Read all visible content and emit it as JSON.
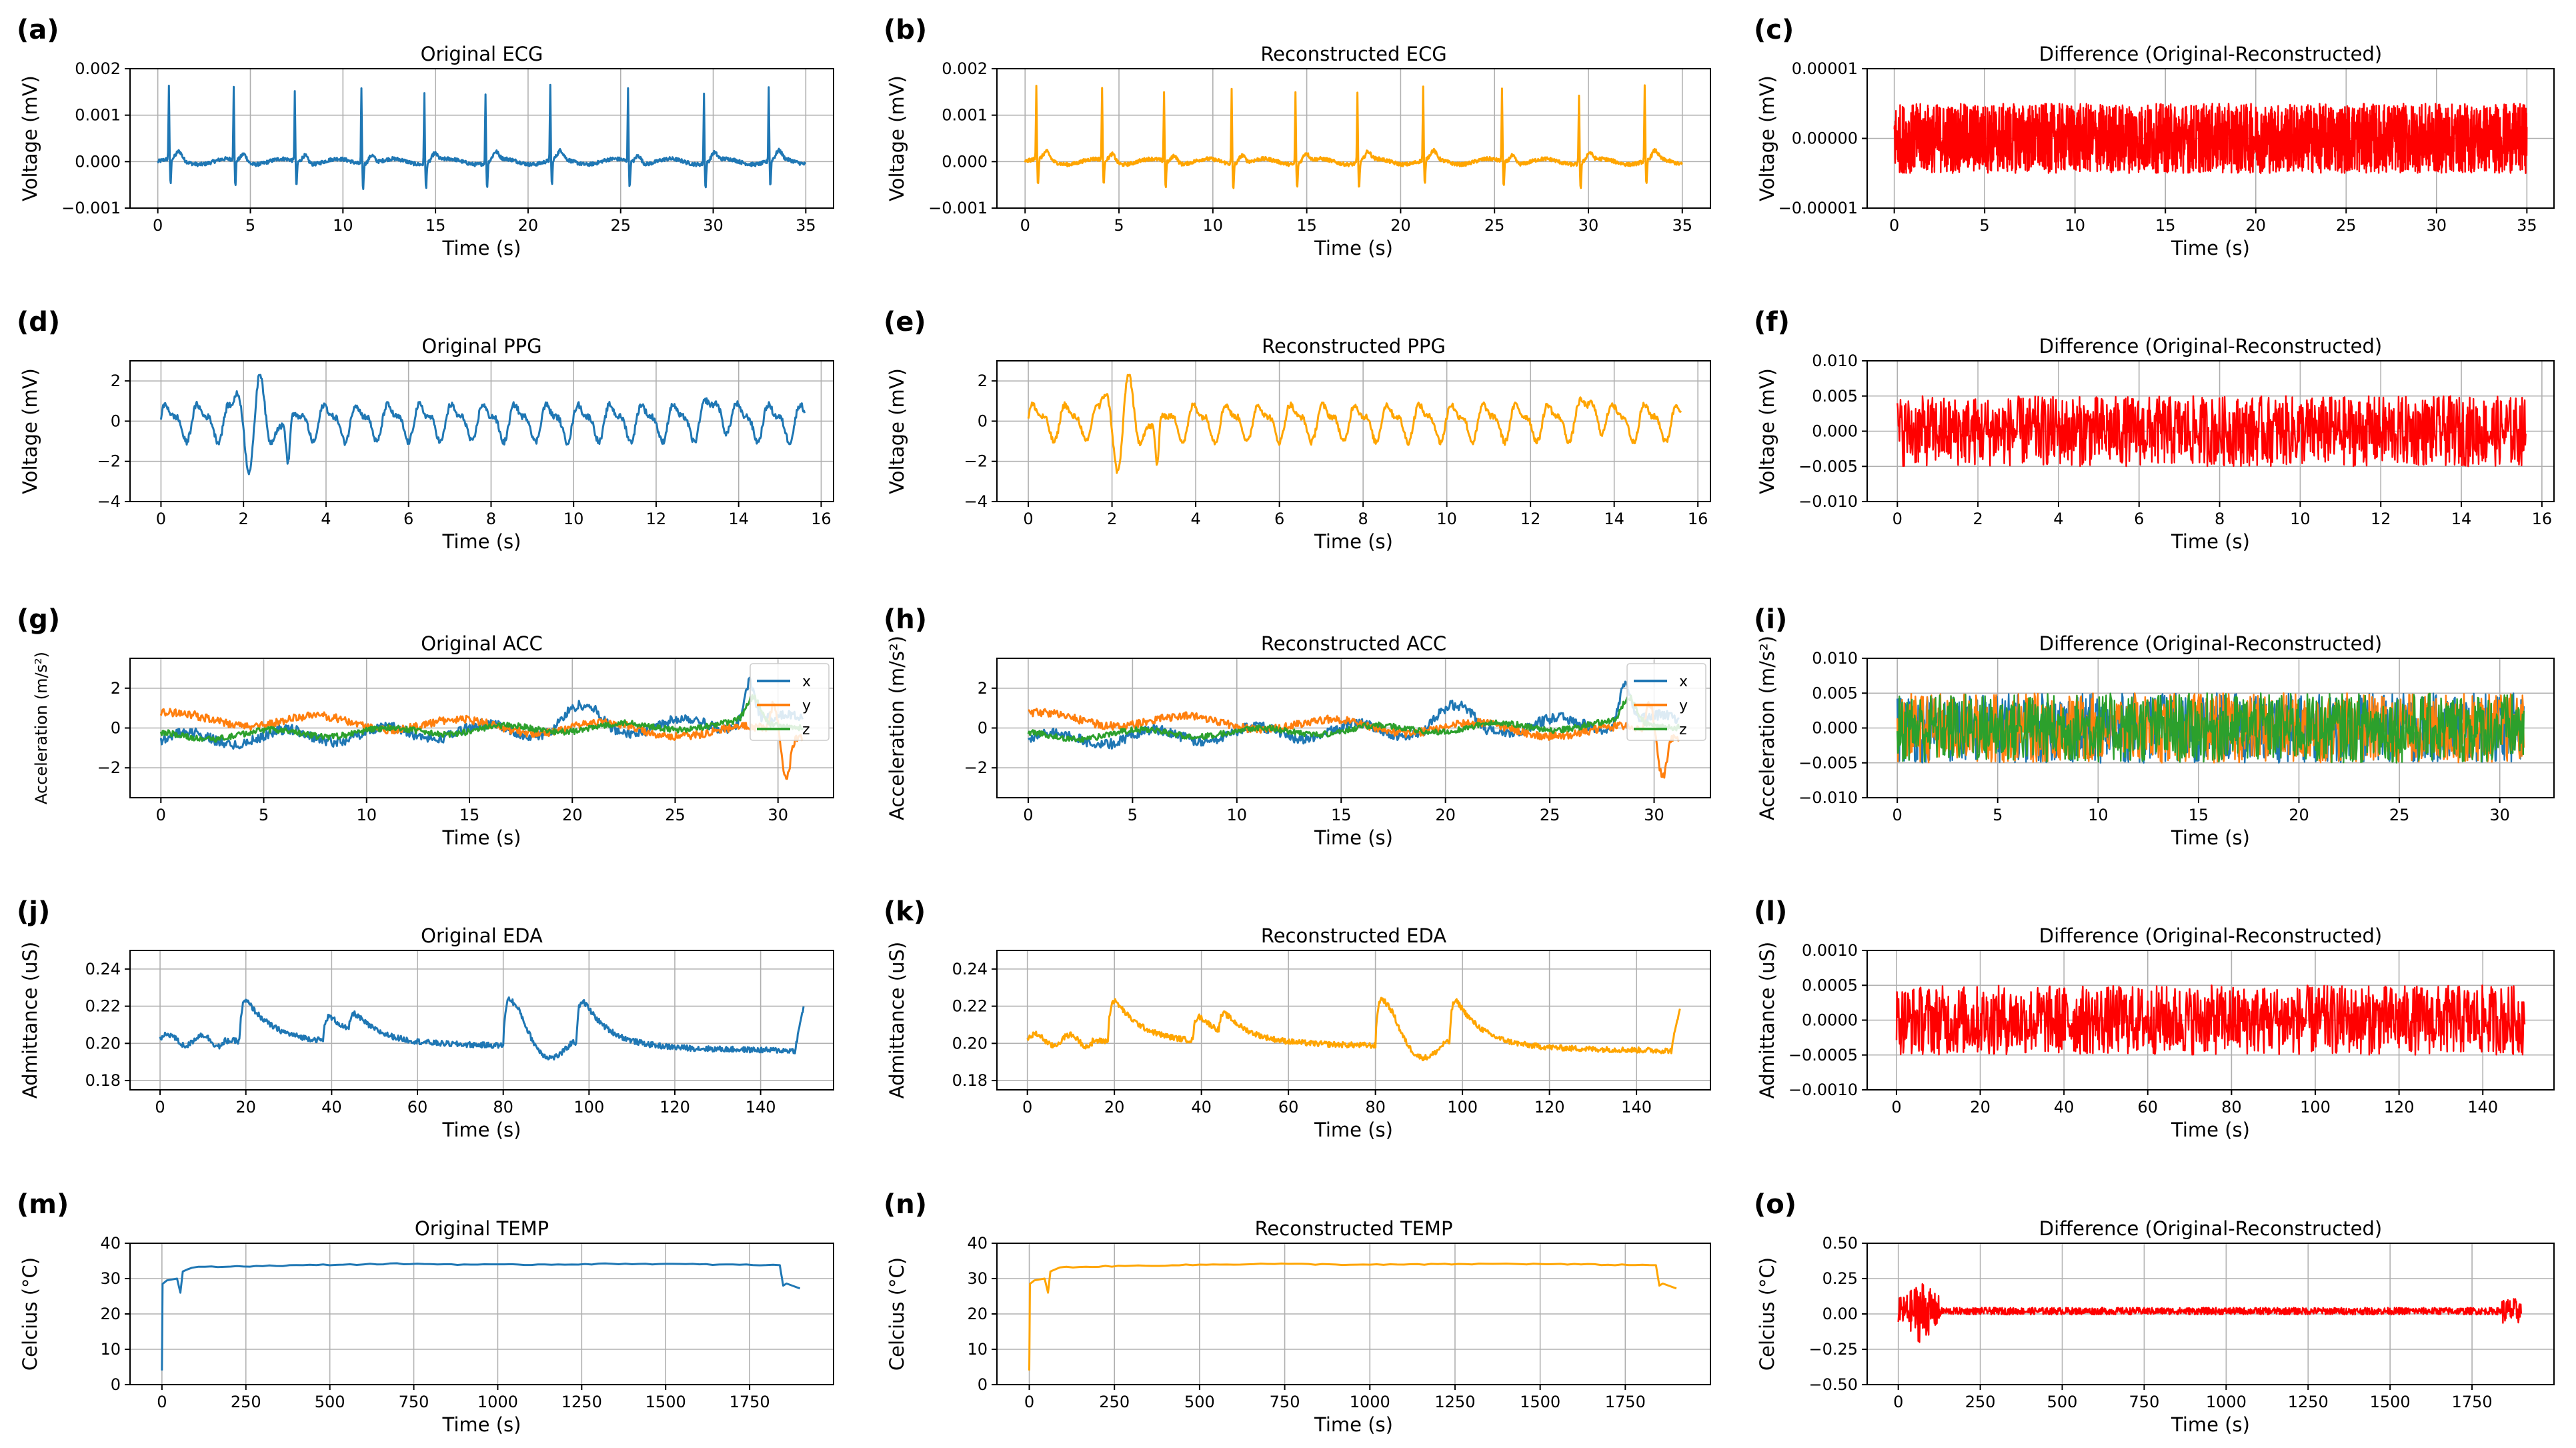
{
  "figure": {
    "colors": {
      "original": "#1f77b4",
      "reconstructed": "#ffa500",
      "difference": "#ff0000",
      "x": "#1f77b4",
      "y": "#ff7f0e",
      "z": "#2ca02c"
    }
  },
  "chart_data": [
    {
      "id": "a",
      "panel_label": "(a)",
      "type": "line",
      "kind": "ecg",
      "variant": "original",
      "title": "Original ECG",
      "xlabel": "Time (s)",
      "ylabel": "Voltage (mV)",
      "xlim": [
        -1.5,
        36.5
      ],
      "ylim": [
        -0.001,
        0.002
      ],
      "xticks": [
        0,
        5,
        10,
        15,
        20,
        25,
        30,
        35
      ],
      "xtick_labels": [
        "0",
        "5",
        "10",
        "15",
        "20",
        "25",
        "30",
        "35"
      ],
      "yticks": [
        -0.001,
        0,
        0.001,
        0.002
      ],
      "ytick_labels": [
        "−0.001",
        "0.000",
        "0.001",
        "0.002"
      ],
      "xrange": [
        0,
        35
      ],
      "beats": [
        0.6,
        4.1,
        7.4,
        11.0,
        14.4,
        17.7,
        21.2,
        25.4,
        29.5,
        33.0
      ],
      "series": [
        {
          "name": "ECG",
          "color": "#1f77b4"
        }
      ]
    },
    {
      "id": "b",
      "panel_label": "(b)",
      "type": "line",
      "kind": "ecg",
      "variant": "reconstructed",
      "title": "Reconstructed ECG",
      "xlabel": "Time (s)",
      "ylabel": "Voltage (mV)",
      "xlim": [
        -1.5,
        36.5
      ],
      "ylim": [
        -0.001,
        0.002
      ],
      "xticks": [
        0,
        5,
        10,
        15,
        20,
        25,
        30,
        35
      ],
      "xtick_labels": [
        "0",
        "5",
        "10",
        "15",
        "20",
        "25",
        "30",
        "35"
      ],
      "yticks": [
        -0.001,
        0,
        0.001,
        0.002
      ],
      "ytick_labels": [
        "−0.001",
        "0.000",
        "0.001",
        "0.002"
      ],
      "xrange": [
        0,
        35
      ],
      "beats": [
        0.6,
        4.1,
        7.4,
        11.0,
        14.4,
        17.7,
        21.2,
        25.4,
        29.5,
        33.0
      ],
      "series": [
        {
          "name": "ECG",
          "color": "#ffa500"
        }
      ]
    },
    {
      "id": "c",
      "panel_label": "(c)",
      "type": "line",
      "kind": "noise",
      "variant": "difference",
      "title": "Difference (Original-Reconstructed)",
      "xlabel": "Time (s)",
      "ylabel": "Voltage (mV)",
      "xlim": [
        -1.5,
        36.5
      ],
      "ylim": [
        -1e-05,
        1e-05
      ],
      "xticks": [
        0,
        5,
        10,
        15,
        20,
        25,
        30,
        35
      ],
      "xtick_labels": [
        "0",
        "5",
        "10",
        "15",
        "20",
        "25",
        "30",
        "35"
      ],
      "yticks": [
        -1e-05,
        0,
        1e-05
      ],
      "ytick_labels": [
        "−0.00001",
        "0.00000",
        "0.00001"
      ],
      "xrange": [
        0,
        35
      ],
      "amplitude": 5e-06,
      "series": [
        {
          "name": "difference",
          "color": "#ff0000"
        }
      ]
    },
    {
      "id": "d",
      "panel_label": "(d)",
      "type": "line",
      "kind": "ppg",
      "variant": "original",
      "title": "Original PPG",
      "xlabel": "Time (s)",
      "ylabel": "Voltage (mV)",
      "xlim": [
        -0.75,
        16.3
      ],
      "ylim": [
        -4,
        3
      ],
      "xticks": [
        0,
        2,
        4,
        6,
        8,
        10,
        12,
        14,
        16
      ],
      "xtick_labels": [
        "0",
        "2",
        "4",
        "6",
        "8",
        "10",
        "12",
        "14",
        "16"
      ],
      "yticks": [
        -4,
        -2,
        0,
        2
      ],
      "ytick_labels": [
        "−4",
        "−2",
        "0",
        "2"
      ],
      "xrange": [
        0,
        15.6
      ],
      "series": [
        {
          "name": "PPG",
          "color": "#1f77b4"
        }
      ]
    },
    {
      "id": "e",
      "panel_label": "(e)",
      "type": "line",
      "kind": "ppg",
      "variant": "reconstructed",
      "title": "Reconstructed PPG",
      "xlabel": "Time (s)",
      "ylabel": "Voltage (mV)",
      "xlim": [
        -0.75,
        16.3
      ],
      "ylim": [
        -4,
        3
      ],
      "xticks": [
        0,
        2,
        4,
        6,
        8,
        10,
        12,
        14,
        16
      ],
      "xtick_labels": [
        "0",
        "2",
        "4",
        "6",
        "8",
        "10",
        "12",
        "14",
        "16"
      ],
      "yticks": [
        -4,
        -2,
        0,
        2
      ],
      "ytick_labels": [
        "−4",
        "−2",
        "0",
        "2"
      ],
      "xrange": [
        0,
        15.6
      ],
      "series": [
        {
          "name": "PPG",
          "color": "#ffa500"
        }
      ]
    },
    {
      "id": "f",
      "panel_label": "(f)",
      "type": "line",
      "kind": "noise",
      "variant": "difference",
      "title": "Difference (Original-Reconstructed)",
      "xlabel": "Time (s)",
      "ylabel": "Voltage (mV)",
      "xlim": [
        -0.75,
        16.3
      ],
      "ylim": [
        -0.01,
        0.01
      ],
      "xticks": [
        0,
        2,
        4,
        6,
        8,
        10,
        12,
        14,
        16
      ],
      "xtick_labels": [
        "0",
        "2",
        "4",
        "6",
        "8",
        "10",
        "12",
        "14",
        "16"
      ],
      "yticks": [
        -0.01,
        -0.005,
        0,
        0.005,
        0.01
      ],
      "ytick_labels": [
        "−0.010",
        "−0.005",
        "0.000",
        "0.005",
        "0.010"
      ],
      "xrange": [
        0,
        15.6
      ],
      "amplitude": 0.005,
      "series": [
        {
          "name": "difference",
          "color": "#ff0000"
        }
      ]
    },
    {
      "id": "g",
      "panel_label": "(g)",
      "type": "line",
      "kind": "acc",
      "variant": "original",
      "title": "Original ACC",
      "xlabel": "Time (s)",
      "ylabel": "Acceleration (m/s²)",
      "xlim": [
        -1.5,
        32.7
      ],
      "ylim": [
        -3.5,
        3.5
      ],
      "xticks": [
        0,
        5,
        10,
        15,
        20,
        25,
        30
      ],
      "xtick_labels": [
        "0",
        "5",
        "10",
        "15",
        "20",
        "25",
        "30"
      ],
      "yticks": [
        -2,
        0,
        2
      ],
      "ytick_labels": [
        "−2",
        "0",
        "2"
      ],
      "xrange": [
        0,
        31.2
      ],
      "legend": [
        "x",
        "y",
        "z"
      ],
      "series": [
        {
          "name": "x",
          "color": "#1f77b4"
        },
        {
          "name": "y",
          "color": "#ff7f0e"
        },
        {
          "name": "z",
          "color": "#2ca02c"
        }
      ]
    },
    {
      "id": "h",
      "panel_label": "(h)",
      "type": "line",
      "kind": "acc",
      "variant": "reconstructed",
      "title": "Reconstructed ACC",
      "xlabel": "Time (s)",
      "ylabel": "Acceleration (m/s²)",
      "xlim": [
        -1.5,
        32.7
      ],
      "ylim": [
        -3.5,
        3.5
      ],
      "xticks": [
        0,
        5,
        10,
        15,
        20,
        25,
        30
      ],
      "xtick_labels": [
        "0",
        "5",
        "10",
        "15",
        "20",
        "25",
        "30"
      ],
      "yticks": [
        -2,
        0,
        2
      ],
      "ytick_labels": [
        "−2",
        "0",
        "2"
      ],
      "xrange": [
        0,
        31.2
      ],
      "legend": [
        "x",
        "y",
        "z"
      ],
      "series": [
        {
          "name": "x",
          "color": "#1f77b4"
        },
        {
          "name": "y",
          "color": "#ff7f0e"
        },
        {
          "name": "z",
          "color": "#2ca02c"
        }
      ]
    },
    {
      "id": "i",
      "panel_label": "(i)",
      "type": "line",
      "kind": "noise3",
      "variant": "difference",
      "title": "Difference (Original-Reconstructed)",
      "xlabel": "Time (s)",
      "ylabel": "Acceleration (m/s²)",
      "xlim": [
        -1.5,
        32.7
      ],
      "ylim": [
        -0.01,
        0.01
      ],
      "xticks": [
        0,
        5,
        10,
        15,
        20,
        25,
        30
      ],
      "xtick_labels": [
        "0",
        "5",
        "10",
        "15",
        "20",
        "25",
        "30"
      ],
      "yticks": [
        -0.01,
        -0.005,
        0,
        0.005,
        0.01
      ],
      "ytick_labels": [
        "−0.010",
        "−0.005",
        "0.000",
        "0.005",
        "0.010"
      ],
      "xrange": [
        0,
        31.2
      ],
      "amplitude": 0.005,
      "series": [
        {
          "name": "x",
          "color": "#1f77b4"
        },
        {
          "name": "y",
          "color": "#ff7f0e"
        },
        {
          "name": "z",
          "color": "#2ca02c"
        }
      ]
    },
    {
      "id": "j",
      "panel_label": "(j)",
      "type": "line",
      "kind": "eda",
      "variant": "original",
      "title": "Original EDA",
      "xlabel": "Time (s)",
      "ylabel": "Admittance (uS)",
      "xlim": [
        -7,
        157
      ],
      "ylim": [
        0.175,
        0.25
      ],
      "xticks": [
        0,
        20,
        40,
        60,
        80,
        100,
        120,
        140
      ],
      "xtick_labels": [
        "0",
        "20",
        "40",
        "60",
        "80",
        "100",
        "120",
        "140"
      ],
      "yticks": [
        0.18,
        0.2,
        0.22,
        0.24
      ],
      "ytick_labels": [
        "0.18",
        "0.20",
        "0.22",
        "0.24"
      ],
      "xrange": [
        0,
        150
      ],
      "series": [
        {
          "name": "EDA",
          "color": "#1f77b4"
        }
      ]
    },
    {
      "id": "k",
      "panel_label": "(k)",
      "type": "line",
      "kind": "eda",
      "variant": "reconstructed",
      "title": "Reconstructed EDA",
      "xlabel": "Time (s)",
      "ylabel": "Admittance (uS)",
      "xlim": [
        -7,
        157
      ],
      "ylim": [
        0.175,
        0.25
      ],
      "xticks": [
        0,
        20,
        40,
        60,
        80,
        100,
        120,
        140
      ],
      "xtick_labels": [
        "0",
        "20",
        "40",
        "60",
        "80",
        "100",
        "120",
        "140"
      ],
      "yticks": [
        0.18,
        0.2,
        0.22,
        0.24
      ],
      "ytick_labels": [
        "0.18",
        "0.20",
        "0.22",
        "0.24"
      ],
      "xrange": [
        0,
        150
      ],
      "series": [
        {
          "name": "EDA",
          "color": "#ffa500"
        }
      ]
    },
    {
      "id": "l",
      "panel_label": "(l)",
      "type": "line",
      "kind": "noise",
      "variant": "difference",
      "title": "Difference (Original-Reconstructed)",
      "xlabel": "Time (s)",
      "ylabel": "Admittance (uS)",
      "xlim": [
        -7,
        157
      ],
      "ylim": [
        -0.001,
        0.001
      ],
      "xticks": [
        0,
        20,
        40,
        60,
        80,
        100,
        120,
        140
      ],
      "xtick_labels": [
        "0",
        "20",
        "40",
        "60",
        "80",
        "100",
        "120",
        "140"
      ],
      "yticks": [
        -0.001,
        -0.0005,
        0,
        0.0005,
        0.001
      ],
      "ytick_labels": [
        "−0.0010",
        "−0.0005",
        "0.0000",
        "0.0005",
        "0.0010"
      ],
      "xrange": [
        0,
        150
      ],
      "amplitude": 0.0005,
      "series": [
        {
          "name": "difference",
          "color": "#ff0000"
        }
      ]
    },
    {
      "id": "m",
      "panel_label": "(m)",
      "type": "line",
      "kind": "temp",
      "variant": "original",
      "title": "Original TEMP",
      "xlabel": "Time (s)",
      "ylabel": "Celcius (°C)",
      "xlim": [
        -95,
        2000
      ],
      "ylim": [
        0,
        40
      ],
      "xticks": [
        0,
        250,
        500,
        750,
        1000,
        1250,
        1500,
        1750
      ],
      "xtick_labels": [
        "0",
        "250",
        "500",
        "750",
        "1000",
        "1250",
        "1500",
        "1750"
      ],
      "yticks": [
        0,
        10,
        20,
        30,
        40
      ],
      "ytick_labels": [
        "0",
        "10",
        "20",
        "30",
        "40"
      ],
      "xrange": [
        0,
        1900
      ],
      "series": [
        {
          "name": "TEMP",
          "color": "#1f77b4"
        }
      ]
    },
    {
      "id": "n",
      "panel_label": "(n)",
      "type": "line",
      "kind": "temp",
      "variant": "reconstructed",
      "title": "Reconstructed TEMP",
      "xlabel": "Time (s)",
      "ylabel": "Celcius (°C)",
      "xlim": [
        -95,
        2000
      ],
      "ylim": [
        0,
        40
      ],
      "xticks": [
        0,
        250,
        500,
        750,
        1000,
        1250,
        1500,
        1750
      ],
      "xtick_labels": [
        "0",
        "250",
        "500",
        "750",
        "1000",
        "1250",
        "1500",
        "1750"
      ],
      "yticks": [
        0,
        10,
        20,
        30,
        40
      ],
      "ytick_labels": [
        "0",
        "10",
        "20",
        "30",
        "40"
      ],
      "xrange": [
        0,
        1900
      ],
      "series": [
        {
          "name": "TEMP",
          "color": "#ffa500"
        }
      ]
    },
    {
      "id": "o",
      "panel_label": "(o)",
      "type": "line",
      "kind": "tempdiff",
      "variant": "difference",
      "title": "Difference (Original-Reconstructed)",
      "xlabel": "Time (s)",
      "ylabel": "Celcius (°C)",
      "xlim": [
        -95,
        2000
      ],
      "ylim": [
        -0.5,
        0.5
      ],
      "xticks": [
        0,
        250,
        500,
        750,
        1000,
        1250,
        1500,
        1750
      ],
      "xtick_labels": [
        "0",
        "250",
        "500",
        "750",
        "1000",
        "1250",
        "1500",
        "1750"
      ],
      "yticks": [
        -0.5,
        -0.25,
        0,
        0.25,
        0.5
      ],
      "ytick_labels": [
        "−0.50",
        "−0.25",
        "0.00",
        "0.25",
        "0.50"
      ],
      "xrange": [
        0,
        1900
      ],
      "series": [
        {
          "name": "difference",
          "color": "#ff0000"
        }
      ]
    }
  ]
}
